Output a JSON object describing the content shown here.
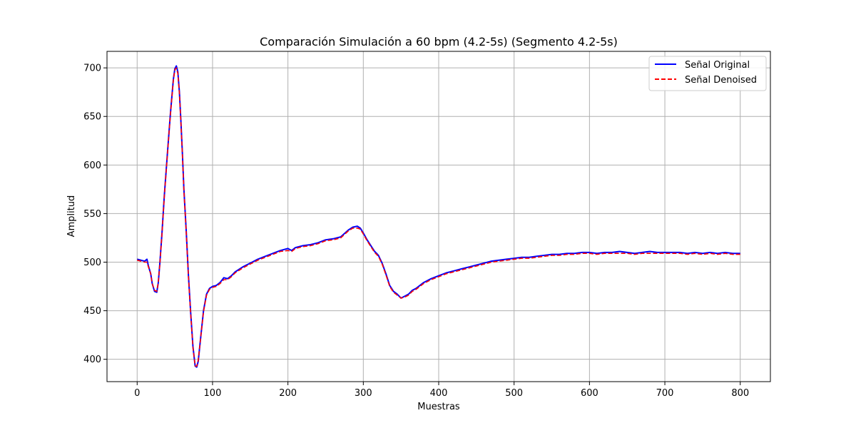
{
  "chart_data": {
    "type": "line",
    "title": "Comparación Simulación a 60 bpm (4.2-5s) (Segmento 4.2-5s)",
    "xlabel": "Muestras",
    "ylabel": "Amplitud",
    "xlim": [
      -40,
      840
    ],
    "ylim": [
      377,
      717
    ],
    "xticks": [
      0,
      100,
      200,
      300,
      400,
      500,
      600,
      700,
      800
    ],
    "yticks": [
      400,
      450,
      500,
      550,
      600,
      650,
      700
    ],
    "grid": true,
    "legend_position": "top-right",
    "series": [
      {
        "name": "Señal Original",
        "color": "#0000ff",
        "style": "solid",
        "x": [
          0,
          5,
          10,
          13,
          15,
          18,
          20,
          23,
          26,
          28,
          30,
          33,
          36,
          40,
          44,
          48,
          50,
          52,
          54,
          56,
          58,
          60,
          62,
          65,
          68,
          71,
          74,
          77,
          79,
          81,
          84,
          88,
          92,
          96,
          100,
          105,
          110,
          115,
          120,
          125,
          130,
          140,
          150,
          160,
          170,
          180,
          190,
          200,
          205,
          210,
          220,
          230,
          240,
          250,
          260,
          270,
          280,
          286,
          292,
          296,
          300,
          305,
          310,
          315,
          320,
          325,
          330,
          335,
          340,
          345,
          350,
          355,
          360,
          365,
          370,
          375,
          380,
          390,
          400,
          410,
          420,
          430,
          440,
          450,
          460,
          470,
          480,
          490,
          500,
          510,
          520,
          530,
          540,
          550,
          560,
          570,
          580,
          590,
          600,
          610,
          620,
          630,
          640,
          650,
          660,
          670,
          680,
          690,
          700,
          710,
          720,
          730,
          740,
          750,
          760,
          770,
          780,
          790,
          800
        ],
        "values": [
          503,
          502,
          501,
          503,
          496,
          488,
          478,
          470,
          469,
          479,
          498,
          530,
          568,
          610,
          652,
          688,
          699,
          702,
          696,
          675,
          645,
          612,
          575,
          533,
          487,
          448,
          413,
          393,
          392,
          398,
          420,
          450,
          467,
          473,
          475,
          476,
          479,
          484,
          483,
          486,
          490,
          495,
          499,
          503,
          506,
          509,
          512,
          514,
          512,
          515,
          517,
          518,
          520,
          523,
          524,
          526,
          533,
          536,
          537,
          535,
          530,
          523,
          517,
          511,
          507,
          499,
          488,
          476,
          470,
          467,
          463,
          465,
          467,
          471,
          473,
          476,
          479,
          483,
          486,
          489,
          491,
          493,
          495,
          497,
          499,
          501,
          502,
          503,
          504,
          505,
          505,
          506,
          507,
          508,
          508,
          509,
          509,
          510,
          510,
          509,
          510,
          510,
          511,
          510,
          509,
          510,
          511,
          510,
          510,
          510,
          510,
          509,
          510,
          509,
          510,
          509,
          510,
          509,
          509
        ]
      },
      {
        "name": "Señal Denoised",
        "color": "#ff0000",
        "style": "dashed",
        "x": [
          0,
          5,
          10,
          13,
          15,
          18,
          20,
          23,
          26,
          28,
          30,
          33,
          36,
          40,
          44,
          48,
          50,
          52,
          54,
          56,
          58,
          60,
          62,
          65,
          68,
          71,
          74,
          77,
          79,
          81,
          84,
          88,
          92,
          96,
          100,
          105,
          110,
          115,
          120,
          125,
          130,
          140,
          150,
          160,
          170,
          180,
          190,
          200,
          205,
          210,
          220,
          230,
          240,
          250,
          260,
          270,
          280,
          286,
          292,
          296,
          300,
          305,
          310,
          315,
          320,
          325,
          330,
          335,
          340,
          345,
          350,
          355,
          360,
          365,
          370,
          375,
          380,
          390,
          400,
          410,
          420,
          430,
          440,
          450,
          460,
          470,
          480,
          490,
          500,
          510,
          520,
          530,
          540,
          550,
          560,
          570,
          580,
          590,
          600,
          610,
          620,
          630,
          640,
          650,
          660,
          670,
          680,
          690,
          700,
          710,
          720,
          730,
          740,
          750,
          760,
          770,
          780,
          790,
          800
        ],
        "values": [
          502,
          501,
          500,
          500,
          495,
          488,
          478,
          471,
          470,
          479,
          497,
          529,
          567,
          609,
          651,
          687,
          698,
          700,
          694,
          674,
          644,
          611,
          574,
          532,
          486,
          447,
          412,
          393,
          393,
          399,
          420,
          449,
          466,
          472,
          474,
          475,
          478,
          482,
          482,
          485,
          489,
          494,
          498,
          502,
          505,
          508,
          511,
          512,
          511,
          514,
          516,
          517,
          519,
          522,
          523,
          525,
          532,
          535,
          535,
          534,
          529,
          522,
          516,
          510,
          506,
          498,
          487,
          475,
          469,
          466,
          463,
          464,
          466,
          470,
          472,
          475,
          478,
          482,
          485,
          488,
          490,
          492,
          494,
          496,
          498,
          500,
          501,
          502,
          503,
          504,
          504,
          505,
          506,
          507,
          507,
          508,
          508,
          509,
          509,
          508,
          509,
          509,
          509,
          509,
          508,
          509,
          509,
          509,
          509,
          509,
          509,
          508,
          509,
          508,
          509,
          508,
          509,
          508,
          508
        ]
      }
    ]
  }
}
